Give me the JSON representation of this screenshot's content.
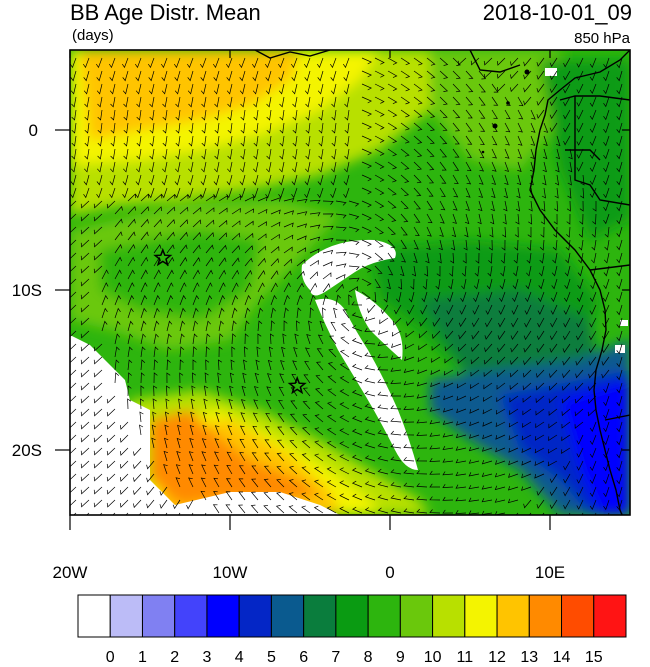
{
  "title": "BB Age Distr. Mean",
  "units": "(days)",
  "datetime": "2018-10-01_09",
  "level": "850 hPa",
  "axes": {
    "x_ticks": [
      "20W",
      "10W",
      "0",
      "10E"
    ],
    "y_ticks": [
      "0",
      "10S",
      "20S"
    ]
  },
  "colorbar": {
    "labels": [
      "0",
      "1",
      "2",
      "3",
      "4",
      "5",
      "6",
      "7",
      "8",
      "9",
      "10",
      "11",
      "12",
      "13",
      "14",
      "15"
    ],
    "colors": [
      "#ffffff",
      "#bcbcf7",
      "#8080f2",
      "#4343fb",
      "#0000ff",
      "#0426c6",
      "#0a5a8f",
      "#0a7d3d",
      "#0a9b12",
      "#2db50e",
      "#6ac80c",
      "#b8e000",
      "#f4f400",
      "#ffc400",
      "#ff8a00",
      "#ff4c00",
      "#ff1414"
    ]
  },
  "markers": [
    {
      "name": "star",
      "lon": -14.2,
      "lat": -8.0
    },
    {
      "name": "star",
      "lon": -5.8,
      "lat": -16.0
    }
  ]
}
